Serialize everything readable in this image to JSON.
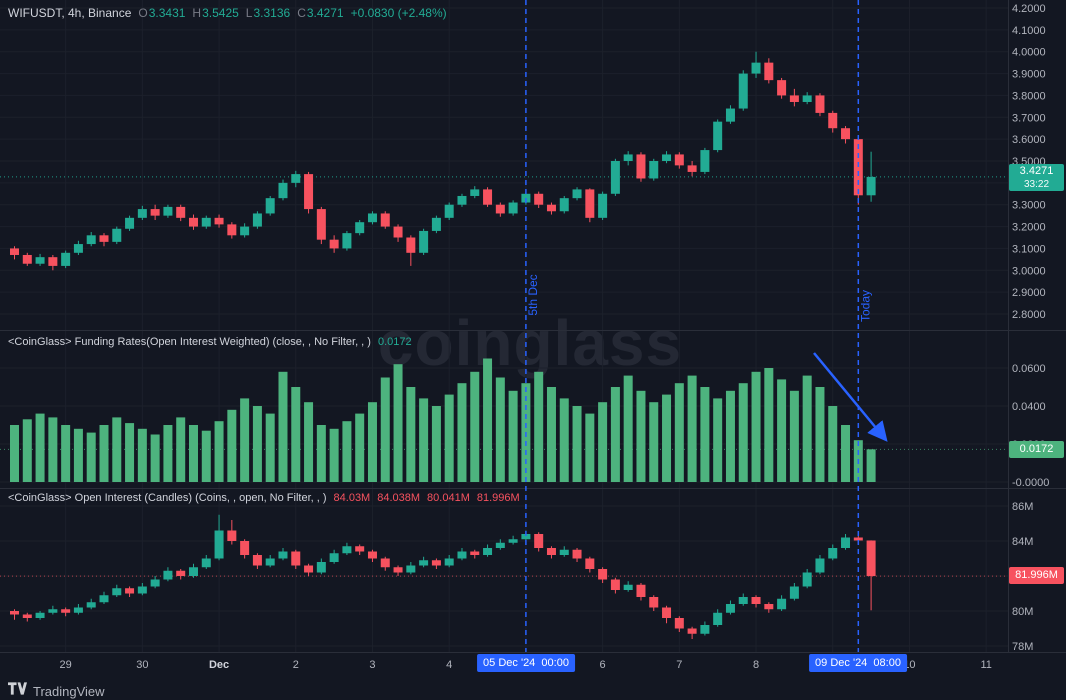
{
  "app": {
    "watermark": "coinglass",
    "footer_brand": "TradingView"
  },
  "colors": {
    "bg": "#131722",
    "up": "#22ab94",
    "down": "#f7525f",
    "funding_bar": "#4db37e",
    "blue": "#2962ff",
    "axis_text": "#b2b5be",
    "grid": "#1c202b",
    "separator": "#2a2e39"
  },
  "legend_price": {
    "symbol": "WIFUSDT, 4h, Binance",
    "o_label": "O",
    "o": "3.3431",
    "h_label": "H",
    "h": "3.5425",
    "l_label": "L",
    "l": "3.3136",
    "c_label": "C",
    "c": "3.4271",
    "change": "+0.0830 (+2.48%)"
  },
  "legend_funding": {
    "title": "<CoinGlass> Funding Rates(Open Interest Weighted) (close, , No Filter, , )",
    "value": "0.0172"
  },
  "legend_oi": {
    "title": "<CoinGlass> Open Interest (Candles) (Coins, , open, No Filter, , )",
    "values": [
      "84.03M",
      "84.038M",
      "80.041M",
      "81.996M"
    ]
  },
  "badges": {
    "price": "3.4271",
    "countdown": "33:22",
    "funding": "0.0172",
    "oi": "81.996M"
  },
  "annotations": {
    "vline_1": {
      "label": "5th Dec",
      "time_badge": "05 Dec '24  00:00"
    },
    "vline_2": {
      "label": "Today",
      "time_badge": "09 Dec '24  08:00"
    }
  },
  "x_axis": {
    "labels": [
      {
        "label": "29",
        "bar": 4
      },
      {
        "label": "30",
        "bar": 10
      },
      {
        "label": "Dec",
        "bar": 16,
        "major": true
      },
      {
        "label": "2",
        "bar": 22
      },
      {
        "label": "3",
        "bar": 28
      },
      {
        "label": "4",
        "bar": 34
      },
      {
        "label": "6",
        "bar": 46
      },
      {
        "label": "7",
        "bar": 52
      },
      {
        "label": "8",
        "bar": 58
      },
      {
        "label": "10",
        "bar": 70
      },
      {
        "label": "11",
        "bar": 76
      }
    ]
  },
  "chart_data": [
    {
      "type": "candlestick",
      "pane": "price",
      "title": "WIFUSDT, 4h, Binance",
      "interval": "4h",
      "ylim": [
        2.75,
        4.22
      ],
      "last": {
        "value": 3.4271,
        "countdown": "33:22"
      },
      "y_ticks": [
        {
          "label": "4.2000",
          "value": 4.2
        },
        {
          "label": "4.1000",
          "value": 4.1
        },
        {
          "label": "4.0000",
          "value": 4.0
        },
        {
          "label": "3.9000",
          "value": 3.9
        },
        {
          "label": "3.8000",
          "value": 3.8
        },
        {
          "label": "3.7000",
          "value": 3.7
        },
        {
          "label": "3.6000",
          "value": 3.6
        },
        {
          "label": "3.5000",
          "value": 3.5
        },
        {
          "label": "3.3000",
          "value": 3.3
        },
        {
          "label": "3.2000",
          "value": 3.2
        },
        {
          "label": "3.1000",
          "value": 3.1
        },
        {
          "label": "3.0000",
          "value": 3.0
        },
        {
          "label": "2.9000",
          "value": 2.9
        },
        {
          "label": "2.8000",
          "value": 2.8
        }
      ],
      "ohlc": [
        [
          3.1,
          3.11,
          3.05,
          3.07
        ],
        [
          3.07,
          3.08,
          3.02,
          3.03
        ],
        [
          3.03,
          3.075,
          3.02,
          3.06
        ],
        [
          3.06,
          3.07,
          3.0,
          3.02
        ],
        [
          3.02,
          3.09,
          3.01,
          3.08
        ],
        [
          3.08,
          3.135,
          3.07,
          3.12
        ],
        [
          3.12,
          3.175,
          3.11,
          3.16
        ],
        [
          3.16,
          3.17,
          3.11,
          3.13
        ],
        [
          3.13,
          3.2,
          3.12,
          3.19
        ],
        [
          3.19,
          3.25,
          3.18,
          3.24
        ],
        [
          3.24,
          3.295,
          3.23,
          3.28
        ],
        [
          3.28,
          3.3,
          3.23,
          3.25
        ],
        [
          3.25,
          3.3,
          3.24,
          3.29
        ],
        [
          3.29,
          3.3,
          3.225,
          3.24
        ],
        [
          3.24,
          3.255,
          3.185,
          3.2
        ],
        [
          3.2,
          3.25,
          3.19,
          3.24
        ],
        [
          3.24,
          3.255,
          3.195,
          3.21
        ],
        [
          3.21,
          3.22,
          3.145,
          3.16
        ],
        [
          3.16,
          3.215,
          3.15,
          3.2
        ],
        [
          3.2,
          3.27,
          3.19,
          3.26
        ],
        [
          3.26,
          3.34,
          3.25,
          3.33
        ],
        [
          3.33,
          3.415,
          3.32,
          3.4
        ],
        [
          3.4,
          3.455,
          3.38,
          3.44
        ],
        [
          3.44,
          3.45,
          3.26,
          3.28
        ],
        [
          3.28,
          3.29,
          3.12,
          3.14
        ],
        [
          3.14,
          3.16,
          3.08,
          3.1
        ],
        [
          3.1,
          3.18,
          3.09,
          3.17
        ],
        [
          3.17,
          3.23,
          3.16,
          3.22
        ],
        [
          3.22,
          3.27,
          3.21,
          3.26
        ],
        [
          3.26,
          3.27,
          3.19,
          3.2
        ],
        [
          3.2,
          3.21,
          3.13,
          3.15
        ],
        [
          3.15,
          3.16,
          3.02,
          3.08
        ],
        [
          3.08,
          3.19,
          3.07,
          3.18
        ],
        [
          3.18,
          3.25,
          3.17,
          3.24
        ],
        [
          3.24,
          3.31,
          3.23,
          3.3
        ],
        [
          3.3,
          3.35,
          3.29,
          3.34
        ],
        [
          3.34,
          3.385,
          3.33,
          3.37
        ],
        [
          3.37,
          3.38,
          3.29,
          3.3
        ],
        [
          3.3,
          3.31,
          3.245,
          3.26
        ],
        [
          3.26,
          3.32,
          3.25,
          3.31
        ],
        [
          3.31,
          3.36,
          3.3,
          3.35
        ],
        [
          3.35,
          3.36,
          3.285,
          3.3
        ],
        [
          3.3,
          3.31,
          3.255,
          3.27
        ],
        [
          3.27,
          3.34,
          3.26,
          3.33
        ],
        [
          3.33,
          3.38,
          3.32,
          3.37
        ],
        [
          3.37,
          3.375,
          3.22,
          3.24
        ],
        [
          3.24,
          3.36,
          3.23,
          3.35
        ],
        [
          3.35,
          3.51,
          3.34,
          3.5
        ],
        [
          3.5,
          3.545,
          3.48,
          3.53
        ],
        [
          3.53,
          3.54,
          3.405,
          3.42
        ],
        [
          3.42,
          3.51,
          3.41,
          3.5
        ],
        [
          3.5,
          3.545,
          3.49,
          3.53
        ],
        [
          3.53,
          3.54,
          3.465,
          3.48
        ],
        [
          3.48,
          3.5,
          3.43,
          3.45
        ],
        [
          3.45,
          3.56,
          3.44,
          3.55
        ],
        [
          3.55,
          3.69,
          3.54,
          3.68
        ],
        [
          3.68,
          3.755,
          3.67,
          3.74
        ],
        [
          3.74,
          3.915,
          3.73,
          3.9
        ],
        [
          3.9,
          4.0,
          3.88,
          3.95
        ],
        [
          3.95,
          3.97,
          3.855,
          3.87
        ],
        [
          3.87,
          3.88,
          3.785,
          3.8
        ],
        [
          3.8,
          3.83,
          3.75,
          3.77
        ],
        [
          3.77,
          3.815,
          3.76,
          3.8
        ],
        [
          3.8,
          3.81,
          3.705,
          3.72
        ],
        [
          3.72,
          3.73,
          3.63,
          3.65
        ],
        [
          3.65,
          3.66,
          3.58,
          3.6
        ],
        [
          3.6,
          3.61,
          3.3,
          3.343
        ],
        [
          3.3431,
          3.5425,
          3.3136,
          3.4271
        ]
      ]
    },
    {
      "type": "bar",
      "pane": "funding",
      "title": "Funding Rates(Open Interest Weighted)",
      "ylim": [
        -0.002,
        0.068
      ],
      "last": 0.0172,
      "y_ticks": [
        {
          "label": "0.0600",
          "value": 0.06
        },
        {
          "label": "0.0400",
          "value": 0.04
        },
        {
          "label": "0.0200",
          "value": 0.02
        },
        {
          "label": "-0.0000",
          "value": 0.0
        }
      ],
      "values": [
        0.03,
        0.033,
        0.036,
        0.034,
        0.03,
        0.028,
        0.026,
        0.03,
        0.034,
        0.031,
        0.028,
        0.025,
        0.03,
        0.034,
        0.03,
        0.027,
        0.032,
        0.038,
        0.044,
        0.04,
        0.036,
        0.058,
        0.05,
        0.042,
        0.03,
        0.028,
        0.032,
        0.036,
        0.042,
        0.055,
        0.062,
        0.05,
        0.044,
        0.04,
        0.046,
        0.052,
        0.058,
        0.065,
        0.055,
        0.048,
        0.052,
        0.058,
        0.05,
        0.044,
        0.04,
        0.036,
        0.042,
        0.05,
        0.056,
        0.048,
        0.042,
        0.046,
        0.052,
        0.056,
        0.05,
        0.044,
        0.048,
        0.052,
        0.058,
        0.06,
        0.054,
        0.048,
        0.056,
        0.05,
        0.04,
        0.03,
        0.022,
        0.0172
      ]
    },
    {
      "type": "candlestick",
      "pane": "open_interest",
      "title": "Open Interest (Candles)",
      "ylim": [
        77.5,
        86.5
      ],
      "last": 81.996,
      "y_ticks": [
        {
          "label": "86M",
          "value": 86
        },
        {
          "label": "84M",
          "value": 84
        },
        {
          "label": "80M",
          "value": 80
        },
        {
          "label": "78M",
          "value": 78
        }
      ],
      "ohlc": [
        [
          80.0,
          80.1,
          79.5,
          79.8
        ],
        [
          79.8,
          79.9,
          79.4,
          79.6
        ],
        [
          79.6,
          80.0,
          79.5,
          79.9
        ],
        [
          79.9,
          80.3,
          79.8,
          80.1
        ],
        [
          80.1,
          80.2,
          79.7,
          79.9
        ],
        [
          79.9,
          80.4,
          79.8,
          80.2
        ],
        [
          80.2,
          80.7,
          80.1,
          80.5
        ],
        [
          80.5,
          81.1,
          80.4,
          80.9
        ],
        [
          80.9,
          81.5,
          80.8,
          81.3
        ],
        [
          81.3,
          81.4,
          80.8,
          81.0
        ],
        [
          81.0,
          81.6,
          80.9,
          81.4
        ],
        [
          81.4,
          82.0,
          81.3,
          81.8
        ],
        [
          81.8,
          82.5,
          81.7,
          82.3
        ],
        [
          82.3,
          82.4,
          81.8,
          82.0
        ],
        [
          82.0,
          82.7,
          81.9,
          82.5
        ],
        [
          82.5,
          83.2,
          82.4,
          83.0
        ],
        [
          83.0,
          85.5,
          82.9,
          84.6
        ],
        [
          84.6,
          85.2,
          83.8,
          84.0
        ],
        [
          84.0,
          84.1,
          83.0,
          83.2
        ],
        [
          83.2,
          83.3,
          82.4,
          82.6
        ],
        [
          82.6,
          83.2,
          82.5,
          83.0
        ],
        [
          83.0,
          83.6,
          82.9,
          83.4
        ],
        [
          83.4,
          83.5,
          82.4,
          82.6
        ],
        [
          82.6,
          82.7,
          82.0,
          82.2
        ],
        [
          82.2,
          83.0,
          82.1,
          82.8
        ],
        [
          82.8,
          83.5,
          82.7,
          83.3
        ],
        [
          83.3,
          83.9,
          83.2,
          83.7
        ],
        [
          83.7,
          83.8,
          83.2,
          83.4
        ],
        [
          83.4,
          83.5,
          82.8,
          83.0
        ],
        [
          83.0,
          83.1,
          82.3,
          82.5
        ],
        [
          82.5,
          82.6,
          82.0,
          82.2
        ],
        [
          82.2,
          82.8,
          82.1,
          82.6
        ],
        [
          82.6,
          83.1,
          82.5,
          82.9
        ],
        [
          82.9,
          83.0,
          82.4,
          82.6
        ],
        [
          82.6,
          83.2,
          82.5,
          83.0
        ],
        [
          83.0,
          83.6,
          82.9,
          83.4
        ],
        [
          83.4,
          83.5,
          83.0,
          83.2
        ],
        [
          83.2,
          83.8,
          83.1,
          83.6
        ],
        [
          83.6,
          84.1,
          83.5,
          83.9
        ],
        [
          83.9,
          84.3,
          83.8,
          84.1
        ],
        [
          84.1,
          84.6,
          84.0,
          84.4
        ],
        [
          84.4,
          84.5,
          83.4,
          83.6
        ],
        [
          83.6,
          83.7,
          83.0,
          83.2
        ],
        [
          83.2,
          83.7,
          83.1,
          83.5
        ],
        [
          83.5,
          83.6,
          82.8,
          83.0
        ],
        [
          83.0,
          83.1,
          82.2,
          82.4
        ],
        [
          82.4,
          82.5,
          81.6,
          81.8
        ],
        [
          81.8,
          81.9,
          81.0,
          81.2
        ],
        [
          81.2,
          81.7,
          81.1,
          81.5
        ],
        [
          81.5,
          81.6,
          80.6,
          80.8
        ],
        [
          80.8,
          80.9,
          80.0,
          80.2
        ],
        [
          80.2,
          80.3,
          79.3,
          79.6
        ],
        [
          79.6,
          79.7,
          78.8,
          79.0
        ],
        [
          79.0,
          79.1,
          78.4,
          78.7
        ],
        [
          78.7,
          79.4,
          78.6,
          79.2
        ],
        [
          79.2,
          80.1,
          79.1,
          79.9
        ],
        [
          79.9,
          80.6,
          79.8,
          80.4
        ],
        [
          80.4,
          81.0,
          80.3,
          80.8
        ],
        [
          80.8,
          80.9,
          80.2,
          80.4
        ],
        [
          80.4,
          80.5,
          79.9,
          80.1
        ],
        [
          80.1,
          80.9,
          80.0,
          80.7
        ],
        [
          80.7,
          81.6,
          80.6,
          81.4
        ],
        [
          81.4,
          82.4,
          81.3,
          82.2
        ],
        [
          82.2,
          83.2,
          82.1,
          83.0
        ],
        [
          83.0,
          83.8,
          82.9,
          83.6
        ],
        [
          83.6,
          84.4,
          83.5,
          84.2
        ],
        [
          84.2,
          84.3,
          83.8,
          84.03
        ],
        [
          84.03,
          84.038,
          80.041,
          81.996
        ]
      ]
    }
  ]
}
